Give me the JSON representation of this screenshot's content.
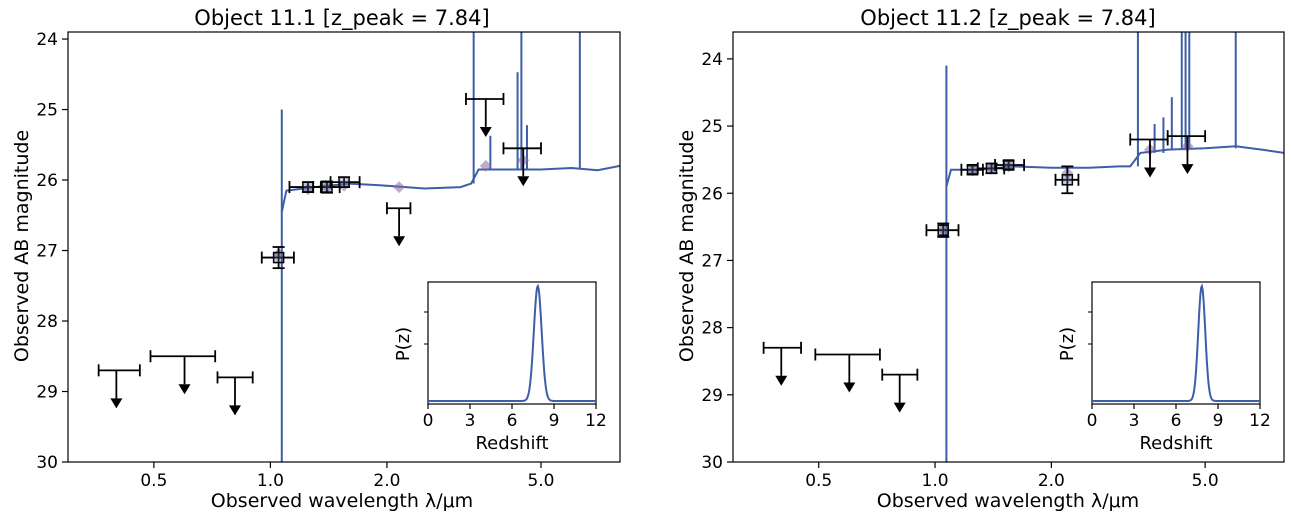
{
  "figure": {
    "panels": [
      {
        "title": "Object 11.1 [z_peak = 7.84]",
        "xlabel": "Observed wavelength λ/μm",
        "ylabel": "Observed AB magnitude",
        "inset_xlabel": "Redshift",
        "inset_ylabel": "P(z)"
      },
      {
        "title": "Object 11.2 [z_peak = 7.84]",
        "xlabel": "Observed wavelength λ/μm",
        "ylabel": "Observed AB magnitude",
        "inset_xlabel": "Redshift",
        "inset_ylabel": "P(z)"
      }
    ]
  },
  "chart_data": [
    {
      "type": "scatter",
      "title": "Object 11.1 [z_peak = 7.84]",
      "xlabel": "Observed wavelength λ/μm",
      "ylabel": "Observed AB magnitude",
      "x_scale": "log",
      "xlim": [
        0.3,
        8.0
      ],
      "ylim": [
        30,
        23.9
      ],
      "xticks": [
        0.5,
        1.0,
        2.0,
        5.0
      ],
      "xtick_labels": [
        "0.5",
        "1.0",
        "2.0",
        "5.0"
      ],
      "yticks": [
        24,
        25,
        26,
        27,
        28,
        29,
        30
      ],
      "ytick_labels": [
        "24",
        "25",
        "26",
        "27",
        "28",
        "29",
        "30"
      ],
      "grid": false,
      "colors": {
        "sed": "#3d5ea8",
        "model_points": "#8a6aa3",
        "data": "#000000"
      },
      "photometry": [
        {
          "x": 1.05,
          "xlo": 0.95,
          "xhi": 1.15,
          "y": 27.1,
          "yerr": 0.15
        },
        {
          "x": 1.25,
          "xlo": 1.12,
          "xhi": 1.35,
          "y": 26.1,
          "yerr": 0.07
        },
        {
          "x": 1.4,
          "xlo": 1.29,
          "xhi": 1.51,
          "y": 26.1,
          "yerr": 0.08
        },
        {
          "x": 1.55,
          "xlo": 1.43,
          "xhi": 1.7,
          "y": 26.03,
          "yerr": 0.07
        }
      ],
      "upper_limits": [
        {
          "x": 0.4,
          "xlo": 0.36,
          "xhi": 0.46,
          "y": 28.7
        },
        {
          "x": 0.6,
          "xlo": 0.49,
          "xhi": 0.72,
          "y": 28.5
        },
        {
          "x": 0.81,
          "xlo": 0.73,
          "xhi": 0.9,
          "y": 28.8
        },
        {
          "x": 2.15,
          "xlo": 2.0,
          "xhi": 2.3,
          "y": 26.4
        },
        {
          "x": 3.6,
          "xlo": 3.2,
          "xhi": 4.0,
          "y": 24.85
        },
        {
          "x": 4.5,
          "xlo": 4.0,
          "xhi": 5.0,
          "y": 25.55
        }
      ],
      "model_points": [
        {
          "x": 1.05,
          "y": 27.05
        },
        {
          "x": 1.25,
          "y": 26.13
        },
        {
          "x": 1.4,
          "y": 26.1
        },
        {
          "x": 1.55,
          "y": 26.08
        },
        {
          "x": 2.15,
          "y": 26.1
        },
        {
          "x": 3.6,
          "y": 25.8
        },
        {
          "x": 4.5,
          "y": 25.72
        }
      ],
      "sed": {
        "break_x": 1.07,
        "break_faint_y": 30,
        "peak_y": 25.0,
        "continuum": [
          [
            1.07,
            26.45
          ],
          [
            1.1,
            26.15
          ],
          [
            1.3,
            26.1
          ],
          [
            1.6,
            26.05
          ],
          [
            2.0,
            26.08
          ],
          [
            2.5,
            26.12
          ],
          [
            3.1,
            26.1
          ],
          [
            3.3,
            26.05
          ],
          [
            3.45,
            25.85
          ],
          [
            4.0,
            25.85
          ],
          [
            5.0,
            25.85
          ],
          [
            6.0,
            25.83
          ],
          [
            7.0,
            25.86
          ],
          [
            8.0,
            25.8
          ]
        ],
        "lines": [
          [
            3.35,
            23.9
          ],
          [
            3.7,
            25.4
          ],
          [
            4.35,
            24.5
          ],
          [
            4.45,
            23.9
          ],
          [
            4.6,
            25.25
          ],
          [
            6.3,
            23.9
          ]
        ]
      },
      "inset": {
        "type": "line",
        "xlabel": "Redshift",
        "ylabel": "P(z)",
        "xlim": [
          0,
          12
        ],
        "xticks": [
          0,
          3,
          6,
          9,
          12
        ],
        "xtick_labels": [
          "0",
          "3",
          "6",
          "9",
          "12"
        ],
        "peak": 7.84,
        "width": 0.28
      }
    },
    {
      "type": "scatter",
      "title": "Object 11.2 [z_peak = 7.84]",
      "xlabel": "Observed wavelength λ/μm",
      "ylabel": "Observed AB magnitude",
      "x_scale": "log",
      "xlim": [
        0.3,
        8.0
      ],
      "ylim": [
        30,
        23.6
      ],
      "xticks": [
        0.5,
        1.0,
        2.0,
        5.0
      ],
      "xtick_labels": [
        "0.5",
        "1.0",
        "2.0",
        "5.0"
      ],
      "yticks": [
        24,
        25,
        26,
        27,
        28,
        29,
        30
      ],
      "ytick_labels": [
        "24",
        "25",
        "26",
        "27",
        "28",
        "29",
        "30"
      ],
      "grid": false,
      "colors": {
        "sed": "#3d5ea8",
        "model_points": "#8a6aa3",
        "data": "#000000"
      },
      "photometry": [
        {
          "x": 1.05,
          "xlo": 0.95,
          "xhi": 1.15,
          "y": 26.55,
          "yerr": 0.1
        },
        {
          "x": 1.25,
          "xlo": 1.17,
          "xhi": 1.33,
          "y": 25.65,
          "yerr": 0.06
        },
        {
          "x": 1.4,
          "xlo": 1.29,
          "xhi": 1.51,
          "y": 25.63,
          "yerr": 0.07
        },
        {
          "x": 1.55,
          "xlo": 1.43,
          "xhi": 1.7,
          "y": 25.58,
          "yerr": 0.06
        },
        {
          "x": 2.2,
          "xlo": 2.05,
          "xhi": 2.35,
          "y": 25.8,
          "yerr": 0.2
        }
      ],
      "upper_limits": [
        {
          "x": 0.4,
          "xlo": 0.36,
          "xhi": 0.45,
          "y": 28.3
        },
        {
          "x": 0.6,
          "xlo": 0.49,
          "xhi": 0.72,
          "y": 28.4
        },
        {
          "x": 0.81,
          "xlo": 0.73,
          "xhi": 0.9,
          "y": 28.7
        },
        {
          "x": 3.6,
          "xlo": 3.2,
          "xhi": 4.0,
          "y": 25.2
        },
        {
          "x": 4.5,
          "xlo": 4.0,
          "xhi": 5.0,
          "y": 25.15
        }
      ],
      "model_points": [
        {
          "x": 1.05,
          "y": 26.55
        },
        {
          "x": 1.25,
          "y": 25.66
        },
        {
          "x": 1.4,
          "y": 25.63
        },
        {
          "x": 1.55,
          "y": 25.6
        },
        {
          "x": 2.2,
          "y": 25.7
        },
        {
          "x": 3.6,
          "y": 25.35
        },
        {
          "x": 4.5,
          "y": 25.3
        }
      ],
      "sed": {
        "break_x": 1.07,
        "break_faint_y": 30,
        "peak_y": 24.1,
        "continuum": [
          [
            1.07,
            25.9
          ],
          [
            1.1,
            25.65
          ],
          [
            1.3,
            25.65
          ],
          [
            1.6,
            25.6
          ],
          [
            2.0,
            25.62
          ],
          [
            2.5,
            25.62
          ],
          [
            3.0,
            25.6
          ],
          [
            3.2,
            25.6
          ],
          [
            3.4,
            25.4
          ],
          [
            4.0,
            25.35
          ],
          [
            5.0,
            25.33
          ],
          [
            6.0,
            25.3
          ],
          [
            7.0,
            25.35
          ],
          [
            8.0,
            25.4
          ]
        ],
        "lines": [
          [
            3.35,
            23.6
          ],
          [
            3.7,
            25.0
          ],
          [
            3.9,
            24.9
          ],
          [
            4.1,
            24.6
          ],
          [
            4.35,
            23.6
          ],
          [
            4.45,
            23.6
          ],
          [
            4.55,
            23.6
          ],
          [
            6.0,
            23.6
          ]
        ]
      },
      "inset": {
        "type": "line",
        "xlabel": "Redshift",
        "ylabel": "P(z)",
        "xlim": [
          0,
          12
        ],
        "xticks": [
          0,
          3,
          6,
          9,
          12
        ],
        "xtick_labels": [
          "0",
          "3",
          "6",
          "9",
          "12"
        ],
        "peak": 7.84,
        "width": 0.25
      }
    }
  ]
}
